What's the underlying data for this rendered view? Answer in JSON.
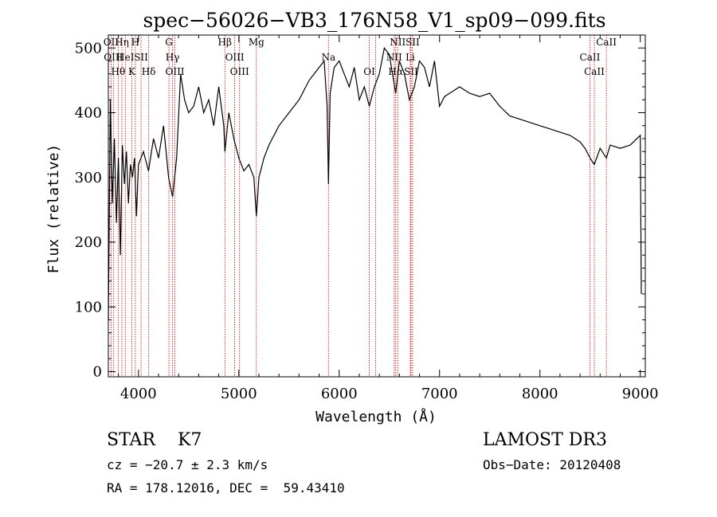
{
  "chart_data": {
    "type": "line",
    "title": "spec−56026−VB3_176N58_V1_sp09−099.fits",
    "xlabel": "Wavelength (Å)",
    "ylabel": "Flux (relative)",
    "xlim": [
      3700,
      9050
    ],
    "ylim": [
      -8,
      520
    ],
    "x_ticks": [
      4000,
      5000,
      6000,
      7000,
      8000,
      9000
    ],
    "y_ticks": [
      0,
      100,
      200,
      300,
      400,
      500
    ],
    "grid": false,
    "line_color": "#000000",
    "marker_line_color": "#c00000",
    "spectrum_x": [
      3700,
      3720,
      3740,
      3760,
      3780,
      3800,
      3820,
      3840,
      3860,
      3880,
      3900,
      3920,
      3940,
      3960,
      3980,
      4000,
      4050,
      4100,
      4150,
      4200,
      4250,
      4300,
      4340,
      4380,
      4420,
      4460,
      4500,
      4550,
      4600,
      4650,
      4700,
      4750,
      4800,
      4850,
      4861,
      4900,
      4950,
      5000,
      5050,
      5100,
      5150,
      5175,
      5200,
      5250,
      5300,
      5400,
      5500,
      5600,
      5700,
      5800,
      5850,
      5880,
      5893,
      5910,
      5950,
      6000,
      6050,
      6100,
      6150,
      6200,
      6250,
      6300,
      6350,
      6400,
      6450,
      6500,
      6563,
      6600,
      6650,
      6700,
      6750,
      6800,
      6850,
      6900,
      6950,
      7000,
      7050,
      7100,
      7150,
      7200,
      7300,
      7400,
      7500,
      7600,
      7700,
      7800,
      7900,
      8000,
      8100,
      8200,
      8300,
      8400,
      8450,
      8500,
      8542,
      8600,
      8662,
      8700,
      8800,
      8900,
      9000,
      9010
    ],
    "spectrum_y": [
      80,
      420,
      260,
      360,
      230,
      330,
      180,
      350,
      290,
      340,
      260,
      320,
      300,
      330,
      240,
      320,
      340,
      310,
      360,
      330,
      380,
      300,
      270,
      330,
      460,
      420,
      400,
      410,
      440,
      400,
      420,
      380,
      440,
      380,
      340,
      400,
      360,
      330,
      310,
      320,
      300,
      240,
      300,
      330,
      350,
      380,
      400,
      420,
      450,
      470,
      480,
      410,
      290,
      430,
      470,
      480,
      460,
      440,
      470,
      420,
      440,
      410,
      440,
      460,
      500,
      490,
      430,
      480,
      460,
      420,
      440,
      480,
      470,
      440,
      480,
      410,
      425,
      430,
      435,
      440,
      430,
      425,
      430,
      410,
      395,
      390,
      385,
      380,
      375,
      370,
      365,
      355,
      345,
      330,
      320,
      345,
      330,
      350,
      345,
      350,
      365,
      120
    ],
    "line_ids": [
      {
        "wavelength": 3727,
        "label": "OII"
      },
      {
        "wavelength": 3750,
        "label": "OIII"
      },
      {
        "wavelength": 3798,
        "label": "Hθ"
      },
      {
        "wavelength": 3835,
        "label": "Hη"
      },
      {
        "wavelength": 3869,
        "label": "HeI"
      },
      {
        "wavelength": 3934,
        "label": "K"
      },
      {
        "wavelength": 3969,
        "label": "H"
      },
      {
        "wavelength": 4026,
        "label": "SII"
      },
      {
        "wavelength": 4102,
        "label": "Hδ"
      },
      {
        "wavelength": 4304,
        "label": "G"
      },
      {
        "wavelength": 4340,
        "label": "Hγ"
      },
      {
        "wavelength": 4363,
        "label": "OIII"
      },
      {
        "wavelength": 4861,
        "label": "Hβ"
      },
      {
        "wavelength": 4959,
        "label": "OIII"
      },
      {
        "wavelength": 5007,
        "label": "OIII"
      },
      {
        "wavelength": 5175,
        "label": "Mg"
      },
      {
        "wavelength": 5893,
        "label": "Na"
      },
      {
        "wavelength": 6300,
        "label": "OI"
      },
      {
        "wavelength": 6364,
        "label": ""
      },
      {
        "wavelength": 6548,
        "label": "NII"
      },
      {
        "wavelength": 6563,
        "label": "Hα"
      },
      {
        "wavelength": 6583,
        "label": "NII"
      },
      {
        "wavelength": 6708,
        "label": "Li"
      },
      {
        "wavelength": 6716,
        "label": "SII"
      },
      {
        "wavelength": 6731,
        "label": "SII"
      },
      {
        "wavelength": 8498,
        "label": "CaII"
      },
      {
        "wavelength": 8542,
        "label": "CaII"
      },
      {
        "wavelength": 8662,
        "label": "CaII"
      }
    ]
  },
  "info": {
    "class_text": "STAR    K7",
    "redshift_text": "cz = −20.7 ± 2.3 km/s",
    "coords_text": "RA = 178.12016, DEC =  59.43410",
    "survey_text": "LAMOST DR3",
    "obs_date_text": "Obs−Date: 20120408"
  }
}
